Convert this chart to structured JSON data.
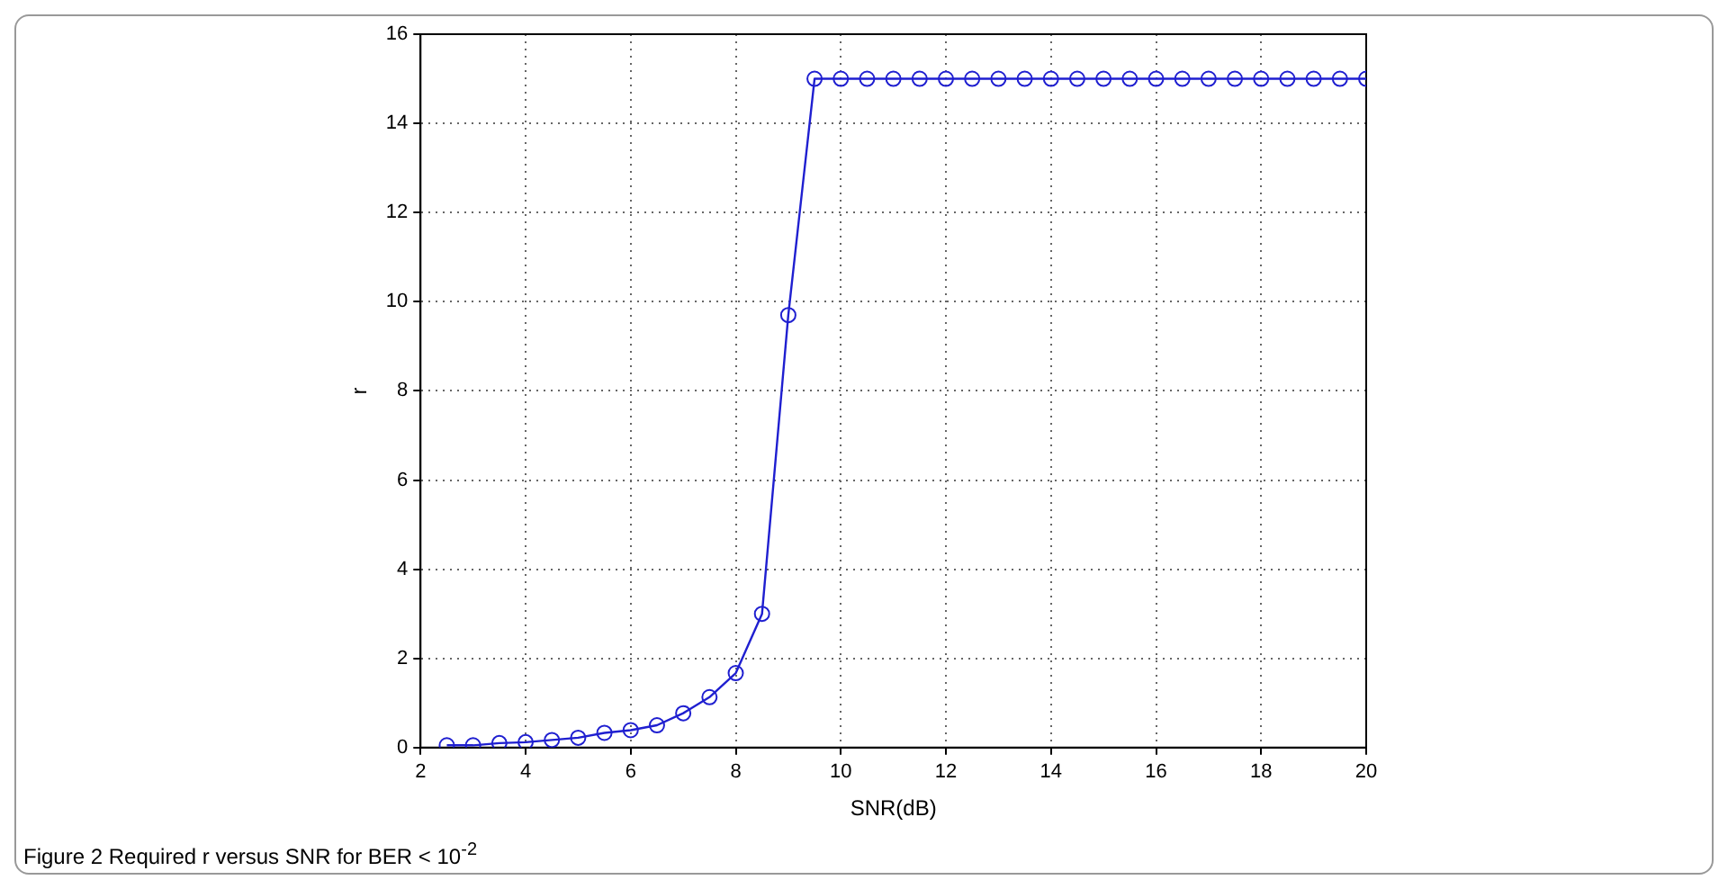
{
  "chart_data": {
    "type": "line",
    "xlabel": "SNR(dB)",
    "ylabel": "r",
    "x": [
      2.5,
      3,
      3.5,
      4,
      4.5,
      5,
      5.5,
      6,
      6.5,
      7,
      7.5,
      8,
      8.5,
      9,
      9.5,
      10,
      10.5,
      11,
      11.5,
      12,
      12.5,
      13,
      13.5,
      14,
      14.5,
      15,
      15.5,
      16,
      16.5,
      17,
      17.5,
      18,
      18.5,
      19,
      19.5,
      20
    ],
    "series": [
      {
        "color": "#1f1fd0",
        "values": [
          0.05,
          0.05,
          0.1,
          0.12,
          0.17,
          0.22,
          0.33,
          0.39,
          0.5,
          0.77,
          1.13,
          1.67,
          3,
          9.7,
          15,
          15,
          15,
          15,
          15,
          15,
          15,
          15,
          15,
          15,
          15,
          15,
          15,
          15,
          15,
          15,
          15,
          15,
          15,
          15,
          15,
          15
        ]
      }
    ],
    "xlim": [
      2,
      20
    ],
    "xticks": [
      2,
      4,
      6,
      8,
      10,
      12,
      14,
      16,
      18,
      20
    ],
    "ylim": [
      0,
      16
    ],
    "yticks": [
      0,
      2,
      4,
      6,
      8,
      10,
      12,
      14,
      16
    ],
    "grid": true,
    "marker": "circle",
    "line_style": "solid",
    "legend": false,
    "annotations": [
      "Figure 2 Required r versus SNR for BER < 10$^{-2}$"
    ]
  }
}
